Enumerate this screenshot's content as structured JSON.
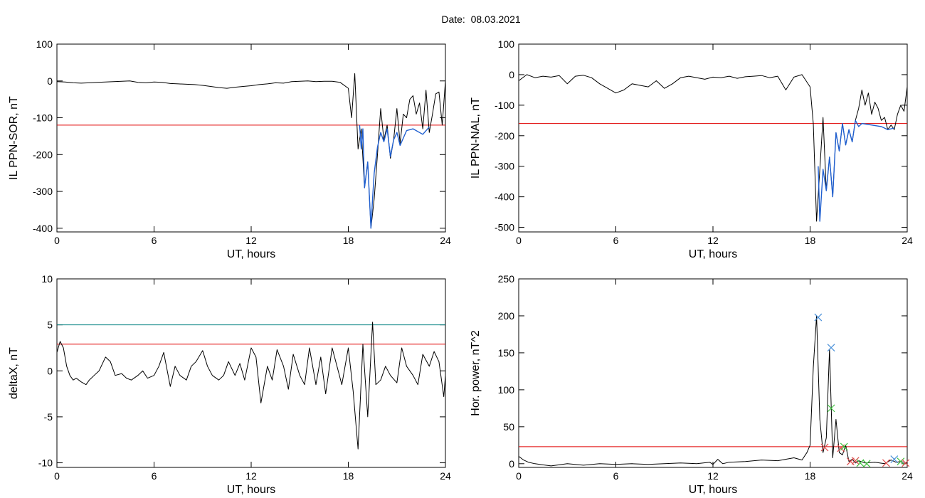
{
  "title": "Date:  08.03.2021",
  "chart_data": [
    {
      "id": "sor",
      "type": "line",
      "xlabel": "UT, hours",
      "ylabel": "IL PPN-SOR, nT",
      "xlim": [
        0,
        24
      ],
      "ylim": [
        -410,
        100
      ],
      "xticks": [
        0,
        6,
        12,
        18,
        24
      ],
      "yticks": [
        -400,
        -300,
        -200,
        -100,
        0,
        100
      ],
      "threshold": {
        "value": -120,
        "color": "#e00000"
      },
      "series": [
        {
          "color": "#000000",
          "x": [
            0,
            0.5,
            1,
            1.5,
            2,
            2.5,
            3,
            3.5,
            4,
            4.5,
            5,
            5.5,
            6,
            6.5,
            7,
            7.5,
            8,
            8.5,
            9,
            9.5,
            10,
            10.5,
            11,
            11.5,
            12,
            12.5,
            13,
            13.5,
            14,
            14.5,
            15,
            15.5,
            16,
            16.5,
            17,
            17.5,
            18,
            18.2,
            18.4,
            18.6,
            18.8,
            19,
            19.2,
            19.4,
            19.6,
            19.8,
            20,
            20.2,
            20.4,
            20.6,
            20.8,
            21,
            21.2,
            21.4,
            21.6,
            21.8,
            22,
            22.2,
            22.4,
            22.6,
            22.8,
            23,
            23.2,
            23.4,
            23.6,
            23.8,
            24
          ],
          "y": [
            -2,
            -3,
            -5,
            -6,
            -5,
            -4,
            -3,
            -2,
            -1,
            0,
            -4,
            -5,
            -3,
            -4,
            -7,
            -8,
            -9,
            -10,
            -12,
            -15,
            -18,
            -20,
            -17,
            -15,
            -13,
            -10,
            -8,
            -5,
            -6,
            -2,
            -1,
            0,
            -2,
            -1,
            -1,
            -4,
            -20,
            -100,
            20,
            -185,
            -130,
            -290,
            -220,
            -400,
            -320,
            -200,
            -75,
            -160,
            -120,
            -210,
            -160,
            -75,
            -170,
            -90,
            -100,
            -50,
            -40,
            -90,
            -60,
            -130,
            -25,
            -140,
            -90,
            -35,
            -30,
            -120,
            0
          ]
        },
        {
          "color": "#1f5fd0",
          "x": [
            18.7,
            18.8,
            18.9,
            19.0,
            19.2,
            19.4,
            19.5,
            19.6,
            19.8,
            20.0,
            20.2,
            20.4,
            20.6,
            20.8,
            21.0,
            21.2,
            21.6,
            22.0,
            22.6,
            23.0
          ],
          "y": [
            -120,
            -185,
            -130,
            -290,
            -220,
            -400,
            -320,
            -250,
            -180,
            -140,
            -165,
            -130,
            -205,
            -160,
            -140,
            -175,
            -135,
            -130,
            -145,
            -125
          ]
        }
      ]
    },
    {
      "id": "nal",
      "type": "line",
      "xlabel": "UT, hours",
      "ylabel": "IL PPN-NAL, nT",
      "xlim": [
        0,
        24
      ],
      "ylim": [
        -515,
        100
      ],
      "xticks": [
        0,
        6,
        12,
        18,
        24
      ],
      "yticks": [
        -500,
        -400,
        -300,
        -200,
        -100,
        0,
        100
      ],
      "threshold": {
        "value": -160,
        "color": "#e00000"
      },
      "series": [
        {
          "color": "#000000",
          "x": [
            0,
            0.5,
            1,
            1.5,
            2,
            2.5,
            3,
            3.5,
            4,
            4.5,
            5,
            5.5,
            6,
            6.5,
            7,
            7.5,
            8,
            8.5,
            9,
            9.5,
            10,
            10.5,
            11,
            11.5,
            12,
            12.5,
            13,
            13.5,
            14,
            14.5,
            15,
            15.5,
            16,
            16.5,
            17,
            17.5,
            18,
            18.2,
            18.4,
            18.6,
            18.8,
            19,
            19.2,
            19.4,
            19.6,
            19.8,
            20,
            20.2,
            20.4,
            20.6,
            20.8,
            21,
            21.2,
            21.4,
            21.6,
            21.8,
            22,
            22.2,
            22.4,
            22.6,
            22.8,
            23,
            23.2,
            23.4,
            23.6,
            23.8,
            24
          ],
          "y": [
            -20,
            0,
            -10,
            -5,
            -8,
            -3,
            -30,
            -5,
            -2,
            -10,
            -30,
            -45,
            -60,
            -50,
            -30,
            -35,
            -40,
            -20,
            -45,
            -30,
            -10,
            -5,
            -10,
            -15,
            -8,
            -10,
            -5,
            -12,
            -7,
            -5,
            -3,
            -10,
            -5,
            -50,
            -8,
            0,
            -40,
            -160,
            -480,
            -310,
            -140,
            -380,
            -270,
            -400,
            -190,
            -250,
            -160,
            -230,
            -180,
            -220,
            -150,
            -110,
            -50,
            -100,
            -60,
            -130,
            -90,
            -110,
            -150,
            -140,
            -180,
            -165,
            -180,
            -130,
            -100,
            -120,
            -40
          ]
        },
        {
          "color": "#1f5fd0",
          "x": [
            18.5,
            18.6,
            18.8,
            19.0,
            19.2,
            19.4,
            19.6,
            19.8,
            20.0,
            20.2,
            20.4,
            20.6,
            20.8,
            21.0,
            21.2,
            22.4,
            22.8,
            23.2
          ],
          "y": [
            -300,
            -480,
            -310,
            -380,
            -270,
            -400,
            -190,
            -250,
            -160,
            -230,
            -180,
            -220,
            -150,
            -170,
            -160,
            -170,
            -180,
            -175
          ]
        }
      ]
    },
    {
      "id": "deltax",
      "type": "line",
      "xlabel": "UT, hours",
      "ylabel": "deltaX, nT",
      "xlim": [
        0,
        24
      ],
      "ylim": [
        -10.5,
        10
      ],
      "xticks": [
        0,
        6,
        12,
        18,
        24
      ],
      "yticks": [
        -10,
        -5,
        0,
        5,
        10
      ],
      "thresholds": [
        {
          "value": 5,
          "color": "#008080"
        },
        {
          "value": 2.9,
          "color": "#e00000"
        }
      ],
      "series": [
        {
          "color": "#000000",
          "x": [
            0,
            0.2,
            0.4,
            0.6,
            0.8,
            1,
            1.2,
            1.5,
            1.8,
            2,
            2.3,
            2.6,
            3,
            3.3,
            3.6,
            4,
            4.3,
            4.6,
            5,
            5.3,
            5.6,
            6,
            6.3,
            6.6,
            7,
            7.3,
            7.6,
            8,
            8.3,
            8.6,
            9,
            9.3,
            9.6,
            10,
            10.3,
            10.6,
            11,
            11.3,
            11.6,
            12,
            12.3,
            12.6,
            13,
            13.3,
            13.6,
            14,
            14.3,
            14.6,
            15,
            15.3,
            15.6,
            16,
            16.3,
            16.6,
            17,
            17.3,
            17.6,
            18,
            18.3,
            18.6,
            18.9,
            19.2,
            19.5,
            19.7,
            20,
            20.3,
            20.6,
            21,
            21.3,
            21.6,
            22,
            22.3,
            22.6,
            23,
            23.3,
            23.6,
            23.9,
            24
          ],
          "y": [
            2,
            3.2,
            2.5,
            0.5,
            -0.5,
            -1,
            -0.8,
            -1.2,
            -1.5,
            -1,
            -0.5,
            0,
            1.5,
            1,
            -0.5,
            -0.3,
            -0.8,
            -1,
            -0.5,
            0,
            -0.8,
            -0.5,
            0.5,
            2,
            -1.7,
            0.5,
            -0.5,
            -1,
            0.5,
            1,
            2.2,
            0.5,
            -0.5,
            -1,
            -0.5,
            1,
            -0.5,
            0.8,
            -1,
            2.5,
            1.5,
            -3.5,
            0.5,
            -1,
            2.3,
            0.5,
            -2,
            1.8,
            -0.5,
            -1.5,
            2.5,
            -1.5,
            1.5,
            -2.5,
            2.5,
            0.5,
            -1.5,
            2.5,
            -2.2,
            -8.5,
            2.9,
            -5,
            5.3,
            -1.5,
            -1,
            0.5,
            -0.5,
            -1.3,
            2.5,
            0.5,
            -0.5,
            -1.5,
            1.8,
            0.5,
            2.1,
            1,
            -2.8,
            -0.5
          ]
        }
      ]
    },
    {
      "id": "power",
      "type": "line",
      "xlabel": "UT, hours",
      "ylabel": "Hor. power, nT^2",
      "xlim": [
        0,
        24
      ],
      "ylim": [
        -5,
        250
      ],
      "xticks": [
        0,
        6,
        12,
        18,
        24
      ],
      "yticks": [
        0,
        50,
        100,
        150,
        200,
        250
      ],
      "threshold": {
        "value": 23,
        "color": "#e00000"
      },
      "series": [
        {
          "color": "#000000",
          "x": [
            0,
            0.3,
            0.6,
            1,
            2,
            3,
            4,
            5,
            6,
            7,
            8,
            9,
            10,
            11,
            11.8,
            12,
            12.3,
            12.6,
            13,
            14,
            15,
            16,
            17,
            17.5,
            17.8,
            18,
            18.2,
            18.4,
            18.6,
            18.8,
            19,
            19.2,
            19.4,
            19.6,
            19.8,
            20,
            20.2,
            20.4,
            20.6,
            20.8,
            21,
            21.4,
            22,
            22.6,
            23,
            23.3,
            23.6,
            24
          ],
          "y": [
            10,
            5,
            2,
            0,
            -3,
            0,
            -2,
            0,
            -1,
            0,
            -1,
            0,
            1,
            0,
            2,
            -1,
            6,
            0,
            2,
            3,
            5,
            4,
            8,
            5,
            15,
            25,
            130,
            200,
            60,
            15,
            35,
            155,
            8,
            60,
            15,
            12,
            25,
            3,
            6,
            1,
            4,
            1,
            2,
            0,
            5,
            2,
            3,
            1
          ]
        }
      ],
      "markers": [
        {
          "x": 18.5,
          "y": 198,
          "color": "#4a90d9"
        },
        {
          "x": 19.3,
          "y": 157,
          "color": "#4a90d9"
        },
        {
          "x": 19.3,
          "y": 75,
          "color": "#3ec23e"
        },
        {
          "x": 18.9,
          "y": 22,
          "color": "#e05050"
        },
        {
          "x": 19.9,
          "y": 21,
          "color": "#e05050"
        },
        {
          "x": 20.1,
          "y": 23,
          "color": "#3ec23e"
        },
        {
          "x": 20.5,
          "y": 3,
          "color": "#e05050"
        },
        {
          "x": 20.8,
          "y": 4,
          "color": "#e05050"
        },
        {
          "x": 21.1,
          "y": 1,
          "color": "#3ec23e"
        },
        {
          "x": 21.5,
          "y": 0,
          "color": "#3ec23e"
        },
        {
          "x": 22.7,
          "y": 1,
          "color": "#e05050"
        },
        {
          "x": 23.2,
          "y": 6,
          "color": "#4a90d9"
        },
        {
          "x": 23.6,
          "y": 3,
          "color": "#3ec23e"
        },
        {
          "x": 23.9,
          "y": 1,
          "color": "#e05050"
        }
      ]
    }
  ]
}
